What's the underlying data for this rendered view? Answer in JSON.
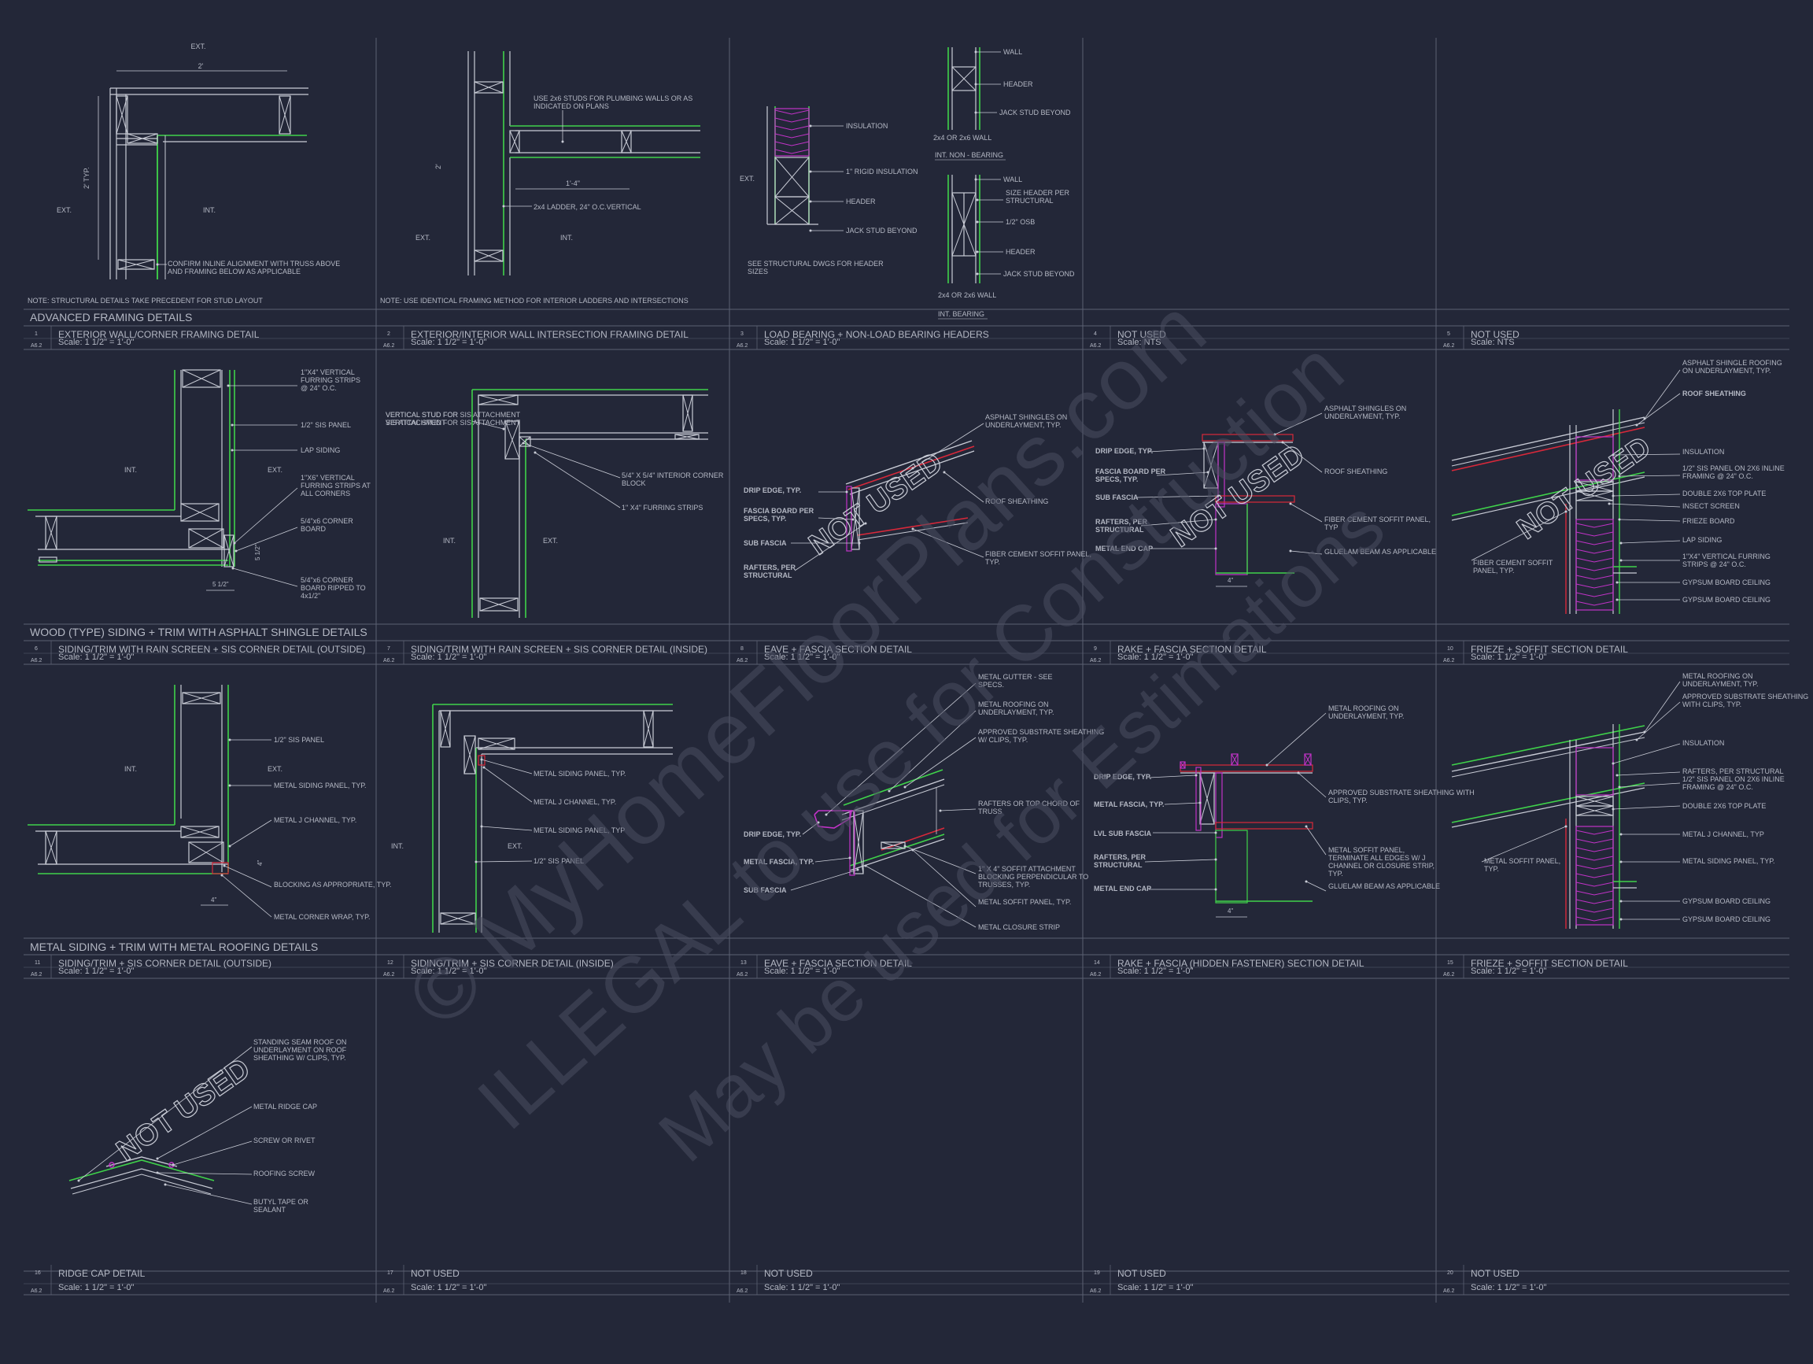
{
  "colors": {
    "background": "#232738",
    "linework": "#c9ccd6",
    "text": "#b4b8c4",
    "green": "#3fd24a",
    "magenta": "#c233c8",
    "red": "#d8283a",
    "grid": "#5b6072",
    "watermark": "#4a4e60"
  },
  "watermark": {
    "line1": "© MyHomeFloorPlans.com",
    "line2": "ILLEGAL to use for Construction",
    "line3": "May be used for Estimations"
  },
  "sheet_ref": "A6.2",
  "sections": {
    "advanced": "ADVANCED FRAMING DETAILS",
    "wood": "WOOD (TYPE) SIDING + TRIM WITH ASPHALT SHINGLE DETAILS",
    "metal": "METAL SIDING + TRIM WITH METAL ROOFING DETAILS"
  },
  "titles": [
    {
      "num": "1",
      "title": "EXTERIOR WALL/CORNER FRAMING DETAIL",
      "scale": "Scale: 1 1/2\" = 1'-0\""
    },
    {
      "num": "2",
      "title": "EXTERIOR/INTERIOR WALL INTERSECTION FRAMING DETAIL",
      "scale": "Scale: 1 1/2\" = 1'-0\""
    },
    {
      "num": "3",
      "title": "LOAD BEARING + NON-LOAD BEARING HEADERS",
      "scale": "Scale: 1 1/2\" = 1'-0\""
    },
    {
      "num": "4",
      "title": "NOT USED",
      "scale": "Scale: NTS"
    },
    {
      "num": "5",
      "title": "NOT USED",
      "scale": "Scale: NTS"
    },
    {
      "num": "6",
      "title": "SIDING/TRIM WITH RAIN SCREEN + SIS CORNER DETAIL (OUTSIDE)",
      "scale": "Scale: 1 1/2\" = 1'-0\""
    },
    {
      "num": "7",
      "title": "SIDING/TRIM WITH RAIN SCREEN + SIS CORNER DETAIL (INSIDE)",
      "scale": "Scale: 1 1/2\" = 1'-0\""
    },
    {
      "num": "8",
      "title": "EAVE + FASCIA SECTION DETAIL",
      "scale": "Scale: 1 1/2\" = 1'-0\""
    },
    {
      "num": "9",
      "title": "RAKE + FASCIA SECTION DETAIL",
      "scale": "Scale: 1 1/2\" = 1'-0\""
    },
    {
      "num": "10",
      "title": "FRIEZE + SOFFIT SECTION DETAIL",
      "scale": "Scale: 1 1/2\" = 1'-0\""
    },
    {
      "num": "11",
      "title": "SIDING/TRIM + SIS CORNER DETAIL (OUTSIDE)",
      "scale": "Scale: 1 1/2\" = 1'-0\""
    },
    {
      "num": "12",
      "title": "SIDING/TRIM + SIS CORNER DETAIL (INSIDE)",
      "scale": "Scale: 1 1/2\" = 1'-0\""
    },
    {
      "num": "13",
      "title": "EAVE + FASCIA SECTION DETAIL",
      "scale": "Scale: 1 1/2\" = 1'-0\""
    },
    {
      "num": "14",
      "title": "RAKE + FASCIA (HIDDEN FASTENER) SECTION DETAIL",
      "scale": "Scale: 1 1/2\" = 1'-0\""
    },
    {
      "num": "15",
      "title": "FRIEZE + SOFFIT SECTION DETAIL",
      "scale": "Scale: 1 1/2\" = 1'-0\""
    },
    {
      "num": "16",
      "title": "RIDGE CAP DETAIL",
      "scale": "Scale: 1 1/2\" = 1'-0\""
    },
    {
      "num": "17",
      "title": "NOT USED",
      "scale": "Scale: 1 1/2\" = 1'-0\""
    },
    {
      "num": "18",
      "title": "NOT USED",
      "scale": "Scale: 1 1/2\" = 1'-0\""
    },
    {
      "num": "19",
      "title": "NOT USED",
      "scale": "Scale: 1 1/2\" = 1'-0\""
    },
    {
      "num": "20",
      "title": "NOT USED",
      "scale": "Scale: 1 1/2\" = 1'-0\""
    }
  ],
  "notes": {
    "d1": "NOTE: STRUCTURAL DETAILS TAKE PRECEDENT FOR STUD LAYOUT",
    "d2": "NOTE: USE IDENTICAL FRAMING METHOD FOR INTERIOR LADDERS AND INTERSECTIONS"
  },
  "stamp": "NOT USED",
  "labels": {
    "ext": "EXT.",
    "int": "INT.",
    "dim_2ft": "2'",
    "dim_2ft_typ": "2' TYP.",
    "dim_2": "2'",
    "dim_1ft4": "1'-4\"",
    "d1_confirm": "CONFIRM INLINE ALIGNMENT WITH TRUSS ABOVE AND FRAMING BELOW AS APPLICABLE",
    "d2_use2x6": "USE 2x6 STUDS FOR PLUMBING WALLS OR AS INDICATED ON PLANS",
    "d2_ladder": "2x4 LADDER, 24\" O.C.VERTICAL",
    "d3_wall": "WALL",
    "d3_header": "HEADER",
    "d3_jack": "JACK STUD BEYOND",
    "d3_2x4": "2x4 OR 2x6 WALL",
    "d3_nonbearing": "INT. NON - BEARING",
    "d3_sizeheader": "SIZE HEADER PER STRUCTURAL",
    "d3_osb": "1/2\" OSB",
    "d3_bearing": "INT. BEARING",
    "d3_insulation": "INSULATION",
    "d3_rigid": "1\" RIGID INSULATION",
    "d3_seestruct": "SEE STRUCTURAL DWGS FOR HEADER SIZES",
    "d6_furring": "1\"X4\" VERTICAL FURRING STRIPS @ 24\" O.C.",
    "d6_sis": "1/2\" SIS PANEL",
    "d6_lap": "LAP SIDING",
    "d6_furring_corners": "1\"X6\" VERTICAL FURRING STRIPS AT ALL CORNERS",
    "d6_corner": "5/4\"x6 CORNER BOARD",
    "d6_corner_ripped": "5/4\"x6 CORNER BOARD RIPPED TO 4x1/2\"",
    "d6_dim": "5 1/2\"",
    "d7_vert": "VERTICAL STUD FOR SIS ATTACHMENT",
    "d7_block": "5/4\" X 5/4\" INTERIOR CORNER BLOCK",
    "d7_furring": "1\" X4\" FURRING STRIPS",
    "d8_shingles": "ASPHALT SHINGLES ON UNDERLAYMENT, TYP.",
    "d8_drip": "DRIP EDGE, TYP.",
    "d8_fascia": "FASCIA BOARD PER SPECS, TYP.",
    "d8_subfascia": "SUB FASCIA",
    "d8_rafters": "RAFTERS, PER STRUCTURAL",
    "d8_sheathing": "ROOF SHEATHING",
    "d8_fiber": "FIBER CEMENT SOFFIT PANEL, TYP.",
    "d9_shingles": "ASPHALT SHINGLES ON UNDERLAYMENT, TYP.",
    "d9_drip": "DRIP EDGE, TYP.",
    "d9_fascia": "FASCIA BOARD PER SPECS, TYP.",
    "d9_subfascia": "SUB FASCIA",
    "d9_rafters": "RAFTERS, PER STRUCTURAL",
    "d9_endcap": "METAL END CAP",
    "d9_sheathing": "ROOF SHEATHING",
    "d9_fiber": "FIBER CEMENT SOFFIT PANEL, TYP",
    "d9_glulam": "GLUELAM BEAM AS APPLICABLE",
    "d9_dim": "4\"",
    "d10_shingle": "ASPHALT SHINGLE ROOFING ON UNDERLAYMENT, TYP.",
    "d10_sheathing": "ROOF SHEATHING",
    "d10_insul": "INSULATION",
    "d10_sis": "1/2\" SIS PANEL ON 2X6 INLINE FRAMING @ 24\" O.C.",
    "d10_plate": "DOUBLE 2X6 TOP PLATE",
    "d10_screen": "INSECT SCREEN",
    "d10_frieze": "FRIEZE BOARD",
    "d10_lap": "LAP SIDING",
    "d10_furring": "1\"X4\" VERTICAL FURRING STRIPS @ 24\" O.C.",
    "d10_gyp": "GYPSUM BOARD CEILING",
    "d10_gyp2": "GYPSUM BOARD CEILING",
    "d10_fiber": "FIBER CEMENT SOFFIT PANEL, TYP.",
    "d11_sis": "1/2\" SIS PANEL",
    "d11_siding": "METAL SIDING PANEL, TYP.",
    "d11_j": "METAL J CHANNEL, TYP.",
    "d11_block": "BLOCKING AS APPROPRIATE, TYP.",
    "d11_wrap": "METAL CORNER WRAP, TYP.",
    "d11_dim": "4\"",
    "d12_siding": "METAL SIDING PANEL, TYP.",
    "d12_j": "METAL J CHANNEL, TYP.",
    "d12_siding2": "METAL SIDING PANEL, TYP",
    "d12_sis": "1/2\" SIS PANEL",
    "d13_gutter": "METAL GUTTER - SEE SPECS.",
    "d13_roof": "METAL ROOFING ON UNDERLAYMENT, TYP.",
    "d13_subst": "APPROVED SUBSTRATE SHEATHING W/ CLIPS, TYP.",
    "d13_rafters": "RAFTERS OR TOP CHORD OF TRUSS",
    "d13_drip": "DRIP EDGE, TYP.",
    "d13_fascia": "METAL FASCIA, TYP.",
    "d13_sub": "SUB FASCIA",
    "d13_soffit_attach": "1\" X 4\" SOFFIT ATTACHMENT BLOCKING PERPENDICULAR TO TRUSSES, TYP.",
    "d13_soffit": "METAL SOFFIT PANEL, TYP.",
    "d13_closure": "METAL CLOSURE STRIP",
    "d14_roof": "METAL ROOFING ON UNDERLAYMENT, TYP.",
    "d14_drip": "DRIP EDGE, TYP.",
    "d14_fascia": "METAL FASCIA, TYP.",
    "d14_lvl": "LVL SUB FASCIA",
    "d14_rafters": "RAFTERS, PER STRUCTURAL",
    "d14_endcap": "METAL END CAP",
    "d14_subst": "APPROVED SUBSTRATE SHEATHING WITH CLIPS, TYP.",
    "d14_soffit": "METAL SOFFIT PANEL, TERMINATE ALL EDGES W/ J CHANNEL OR CLOSURE STRIP, TYP.",
    "d14_glulam": "GLUELAM BEAM AS APPLICABLE",
    "d14_dim": "4\"",
    "d15_roof": "METAL ROOFING ON UNDERLAYMENT, TYP.",
    "d15_subst": "APPROVED SUBSTRATE SHEATHING WITH CLIPS, TYP.",
    "d15_insul": "INSULATION",
    "d15_rafters": "RAFTERS, PER STRUCTURAL",
    "d15_sis": "1/2\" SIS PANEL ON 2X6 INLINE FRAMING @ 24\" O.C.",
    "d15_plate": "DOUBLE 2X6 TOP PLATE",
    "d15_j": "METAL J CHANNEL, TYP",
    "d15_siding": "METAL SIDING PANEL, TYP.",
    "d15_soffit": "METAL SOFFIT PANEL, TYP.",
    "d15_gyp": "GYPSUM BOARD CEILING",
    "d15_gyp2": "GYPSUM BOARD CEILING",
    "d16_standing": "STANDING SEAM ROOF ON UNDERLAYMENT ON ROOF SHEATHING W/ CLIPS, TYP.",
    "d16_ridge": "METAL RIDGE CAP",
    "d16_screw": "SCREW OR RIVET",
    "d16_roofscrew": "ROOFING SCREW",
    "d16_butyl": "BUTYL TAPE OR SEALANT"
  }
}
